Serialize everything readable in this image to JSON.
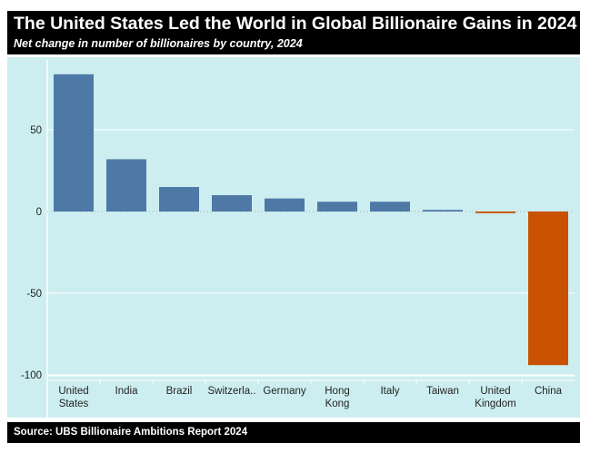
{
  "chart_data": {
    "type": "bar",
    "title": "The United States Led the World in Global Billionaire Gains in 2024",
    "subtitle": "Net change in number of billionaires by country, 2024",
    "source": "Source: UBS Billionaire Ambitions Report 2024",
    "categories": [
      "United States",
      "India",
      "Brazil",
      "Switzerla..",
      "Germany",
      "Hong Kong",
      "Italy",
      "Taiwan",
      "United Kingdom",
      "China"
    ],
    "category_lines": [
      [
        "United",
        "States"
      ],
      [
        "India"
      ],
      [
        "Brazil"
      ],
      [
        "Switzerla.."
      ],
      [
        "Germany"
      ],
      [
        "Hong",
        "Kong"
      ],
      [
        "Italy"
      ],
      [
        "Taiwan"
      ],
      [
        "United",
        "Kingdom"
      ],
      [
        "China"
      ]
    ],
    "values": [
      84,
      32,
      15,
      10,
      8,
      6,
      6,
      1,
      -1,
      -94
    ],
    "ylim": [
      -106,
      88
    ],
    "yticks": [
      50,
      0,
      -50,
      -100
    ],
    "grid": true,
    "colors": {
      "positive": "#4e79a7",
      "negative": "#c85200",
      "background": "#cdeef0"
    }
  }
}
